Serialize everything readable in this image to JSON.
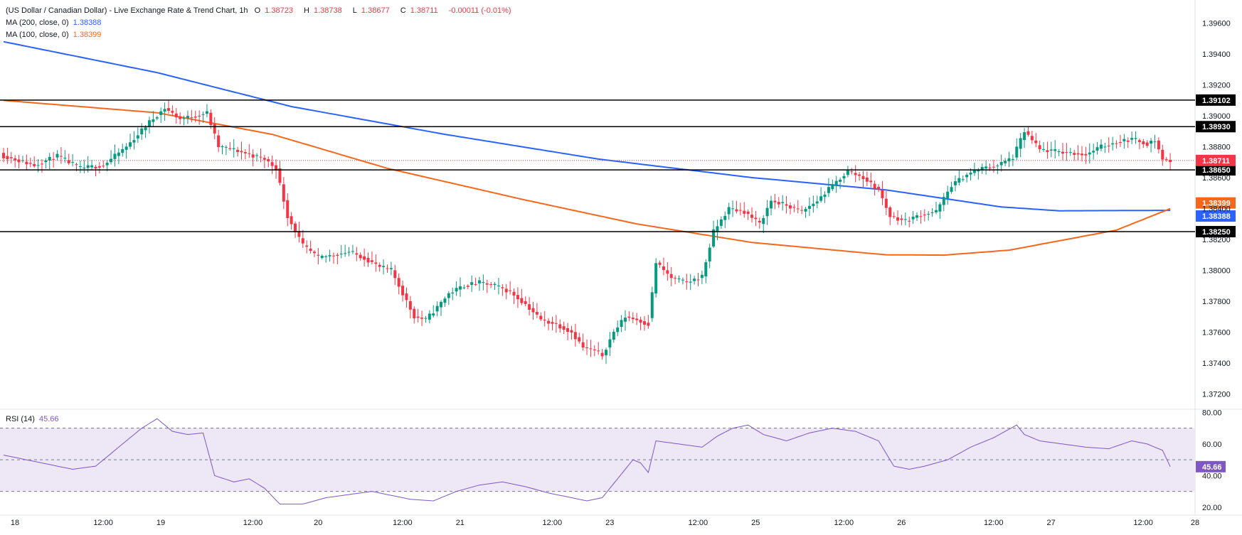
{
  "header": {
    "title": "(US Dollar / Canadian Dollar) - Live Exchange Rate & Trend Chart, 1h",
    "o_label": "O",
    "o_value": "1.38723",
    "h_label": "H",
    "h_value": "1.38738",
    "l_label": "L",
    "l_value": "1.38677",
    "c_label": "C",
    "c_value": "1.38711",
    "change": "-0.00011 (-0.01%)"
  },
  "indicators": {
    "ma200": {
      "label": "MA (200, close, 0)",
      "value": "1.38388",
      "color": "#2962ff"
    },
    "ma100": {
      "label": "MA (100, close, 0)",
      "value": "1.38399",
      "color": "#f7671b"
    },
    "rsi": {
      "label": "RSI (14)",
      "value": "45.66",
      "color": "#7e57c2"
    }
  },
  "colors": {
    "up": "#089981",
    "down": "#f23645",
    "level": "#000000",
    "rsi": "#7e57c2",
    "rsi_band": "#ede7f6"
  },
  "chart_data": [
    {
      "type": "candlestick",
      "title": "(US Dollar / Canadian Dollar) - Live Exchange Rate & Trend Chart, 1h",
      "ylim": [
        1.371,
        1.3975
      ],
      "y_ticks": [
        "1.39600",
        "1.39400",
        "1.39200",
        "1.39000",
        "1.38800",
        "1.38600",
        "1.38400",
        "1.38200",
        "1.38000",
        "1.37800",
        "1.37600",
        "1.37400",
        "1.37200"
      ],
      "x_tick_labels": [
        "18",
        "12:00",
        "19",
        "12:00",
        "20",
        "12:00",
        "21",
        "12:00",
        "23",
        "12:00",
        "25",
        "12:00",
        "26",
        "12:00",
        "27",
        "12:00",
        "28"
      ],
      "horizontal_levels": [
        "1.39102",
        "1.38930",
        "1.38650",
        "1.38250"
      ],
      "last_price": "1.38711",
      "ma200_last": "1.38388",
      "ma100_last": "1.38399",
      "anchors": [
        [
          0,
          1.3874
        ],
        [
          8,
          1.3868
        ],
        [
          14,
          1.3874
        ],
        [
          20,
          1.3866
        ],
        [
          26,
          1.3868
        ],
        [
          32,
          1.388
        ],
        [
          38,
          1.3896
        ],
        [
          42,
          1.3905
        ],
        [
          46,
          1.3898
        ],
        [
          50,
          1.39
        ],
        [
          53,
          1.3902
        ],
        [
          56,
          1.388
        ],
        [
          60,
          1.3878
        ],
        [
          64,
          1.3875
        ],
        [
          68,
          1.3872
        ],
        [
          71,
          1.3866
        ],
        [
          74,
          1.3835
        ],
        [
          78,
          1.3816
        ],
        [
          82,
          1.3808
        ],
        [
          86,
          1.381
        ],
        [
          90,
          1.3812
        ],
        [
          94,
          1.3808
        ],
        [
          98,
          1.3802
        ],
        [
          101,
          1.38
        ],
        [
          104,
          1.3785
        ],
        [
          107,
          1.377
        ],
        [
          110,
          1.3768
        ],
        [
          113,
          1.3776
        ],
        [
          116,
          1.3785
        ],
        [
          120,
          1.379
        ],
        [
          124,
          1.3792
        ],
        [
          128,
          1.379
        ],
        [
          132,
          1.3786
        ],
        [
          136,
          1.3778
        ],
        [
          140,
          1.3768
        ],
        [
          144,
          1.3765
        ],
        [
          148,
          1.376
        ],
        [
          151,
          1.375
        ],
        [
          154,
          1.3748
        ],
        [
          156,
          1.3745
        ],
        [
          159,
          1.376
        ],
        [
          162,
          1.377
        ],
        [
          165,
          1.3768
        ],
        [
          168,
          1.3765
        ],
        [
          170,
          1.3805
        ],
        [
          174,
          1.3795
        ],
        [
          178,
          1.3792
        ],
        [
          182,
          1.3796
        ],
        [
          185,
          1.3825
        ],
        [
          189,
          1.384
        ],
        [
          193,
          1.3838
        ],
        [
          197,
          1.383
        ],
        [
          200,
          1.3845
        ],
        [
          204,
          1.3842
        ],
        [
          208,
          1.3838
        ],
        [
          212,
          1.3845
        ],
        [
          216,
          1.3855
        ],
        [
          220,
          1.3864
        ],
        [
          224,
          1.386
        ],
        [
          228,
          1.3852
        ],
        [
          231,
          1.3835
        ],
        [
          235,
          1.3832
        ],
        [
          239,
          1.3836
        ],
        [
          243,
          1.3838
        ],
        [
          247,
          1.3855
        ],
        [
          251,
          1.3862
        ],
        [
          255,
          1.3866
        ],
        [
          259,
          1.3868
        ],
        [
          263,
          1.3873
        ],
        [
          266,
          1.389
        ],
        [
          270,
          1.3878
        ],
        [
          274,
          1.3877
        ],
        [
          278,
          1.3876
        ],
        [
          282,
          1.3875
        ],
        [
          286,
          1.388
        ],
        [
          290,
          1.3883
        ],
        [
          294,
          1.3885
        ],
        [
          298,
          1.3882
        ],
        [
          300,
          1.3884
        ],
        [
          302,
          1.3872
        ],
        [
          304,
          1.3871
        ]
      ],
      "ma200_anchors": [
        [
          0,
          1.3948
        ],
        [
          40,
          1.3928
        ],
        [
          75,
          1.3906
        ],
        [
          115,
          1.3888
        ],
        [
          155,
          1.3872
        ],
        [
          195,
          1.386
        ],
        [
          230,
          1.3852
        ],
        [
          260,
          1.3841
        ],
        [
          275,
          1.38385
        ],
        [
          304,
          1.38388
        ]
      ],
      "ma100_anchors": [
        [
          0,
          1.391
        ],
        [
          40,
          1.3902
        ],
        [
          70,
          1.3888
        ],
        [
          100,
          1.3866
        ],
        [
          135,
          1.3846
        ],
        [
          165,
          1.383
        ],
        [
          195,
          1.3818
        ],
        [
          230,
          1.381
        ],
        [
          245,
          1.38098
        ],
        [
          262,
          1.3813
        ],
        [
          290,
          1.3826
        ],
        [
          304,
          1.38399
        ]
      ]
    },
    {
      "type": "line",
      "title": "RSI (14)",
      "ylim": [
        15,
        82
      ],
      "y_ticks": [
        "80.00",
        "60.00",
        "40.00",
        "20.00"
      ],
      "band": [
        30,
        70
      ],
      "midline": 50,
      "last_value": "45.66",
      "anchors": [
        [
          0,
          53
        ],
        [
          6,
          50
        ],
        [
          12,
          47
        ],
        [
          18,
          44
        ],
        [
          24,
          46
        ],
        [
          30,
          58
        ],
        [
          36,
          70
        ],
        [
          40,
          76
        ],
        [
          44,
          68
        ],
        [
          48,
          66
        ],
        [
          52,
          67
        ],
        [
          55,
          40
        ],
        [
          60,
          36
        ],
        [
          64,
          38
        ],
        [
          68,
          32
        ],
        [
          72,
          22
        ],
        [
          78,
          22
        ],
        [
          84,
          26
        ],
        [
          90,
          28
        ],
        [
          96,
          30
        ],
        [
          100,
          28
        ],
        [
          106,
          25
        ],
        [
          112,
          24
        ],
        [
          118,
          30
        ],
        [
          124,
          34
        ],
        [
          130,
          36
        ],
        [
          136,
          33
        ],
        [
          142,
          29
        ],
        [
          148,
          26
        ],
        [
          152,
          24
        ],
        [
          156,
          26
        ],
        [
          160,
          38
        ],
        [
          164,
          50
        ],
        [
          166,
          48
        ],
        [
          168,
          42
        ],
        [
          170,
          62
        ],
        [
          176,
          60
        ],
        [
          182,
          58
        ],
        [
          186,
          65
        ],
        [
          190,
          70
        ],
        [
          194,
          72
        ],
        [
          198,
          66
        ],
        [
          204,
          62
        ],
        [
          210,
          67
        ],
        [
          216,
          70
        ],
        [
          222,
          68
        ],
        [
          228,
          62
        ],
        [
          232,
          46
        ],
        [
          236,
          44
        ],
        [
          240,
          46
        ],
        [
          246,
          50
        ],
        [
          252,
          58
        ],
        [
          258,
          64
        ],
        [
          264,
          72
        ],
        [
          266,
          66
        ],
        [
          270,
          62
        ],
        [
          276,
          60
        ],
        [
          282,
          58
        ],
        [
          288,
          57
        ],
        [
          294,
          62
        ],
        [
          298,
          60
        ],
        [
          302,
          56
        ],
        [
          304,
          45.66
        ]
      ]
    }
  ]
}
